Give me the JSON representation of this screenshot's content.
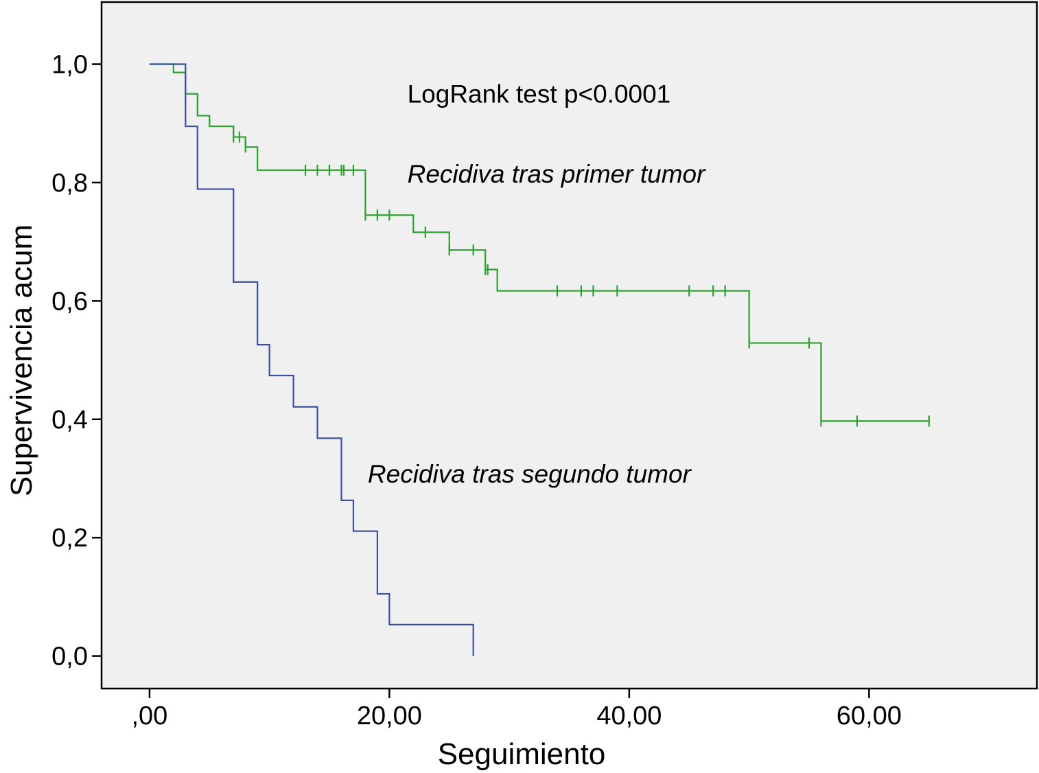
{
  "chart_data": {
    "type": "line",
    "subtype": "kaplan-meier step curve",
    "xlabel": "Seguimiento",
    "ylabel": "Supervivencia acum",
    "xlim": [
      -4,
      74
    ],
    "ylim": [
      -0.055,
      1.105
    ],
    "x_ticks": [
      0,
      20,
      40,
      60
    ],
    "x_tick_labels": [
      ",00",
      "20,00",
      "40,00",
      "60,00"
    ],
    "y_ticks": [
      0,
      0.2,
      0.4,
      0.6,
      0.8,
      1.0
    ],
    "y_tick_labels": [
      "0,0",
      "0,2",
      "0,4",
      "0,6",
      "0,8",
      "1,0"
    ],
    "grid": false,
    "legend": "none",
    "annotations": [
      {
        "text": "LogRank test p<0.0001",
        "x": 21.5,
        "y": 0.935,
        "italic": false
      },
      {
        "text": "Recidiva tras primer tumor",
        "x": 21.5,
        "y": 0.8,
        "italic": true
      },
      {
        "text": "Recidiva tras segundo tumor",
        "x": 18.2,
        "y": 0.293,
        "italic": true
      }
    ],
    "series": [
      {
        "color": "#2ca02c",
        "steps": [
          [
            0,
            1.0
          ],
          [
            2,
            0.986
          ],
          [
            3,
            0.95
          ],
          [
            4,
            0.913
          ],
          [
            5,
            0.895
          ],
          [
            7,
            0.877
          ],
          [
            8,
            0.86
          ],
          [
            9,
            0.821
          ],
          [
            18,
            0.745
          ],
          [
            22,
            0.716
          ],
          [
            25,
            0.686
          ],
          [
            28,
            0.653
          ],
          [
            29,
            0.617
          ],
          [
            50,
            0.529
          ],
          [
            56,
            0.397
          ],
          [
            65,
            0.397
          ]
        ],
        "censored": [
          [
            3,
            0.95
          ],
          [
            7,
            0.877
          ],
          [
            7.5,
            0.877
          ],
          [
            8,
            0.86
          ],
          [
            13,
            0.821
          ],
          [
            14,
            0.821
          ],
          [
            15,
            0.821
          ],
          [
            16,
            0.821
          ],
          [
            16.2,
            0.821
          ],
          [
            17,
            0.821
          ],
          [
            18,
            0.745
          ],
          [
            19,
            0.745
          ],
          [
            20,
            0.745
          ],
          [
            23,
            0.716
          ],
          [
            25,
            0.686
          ],
          [
            27,
            0.686
          ],
          [
            28,
            0.653
          ],
          [
            28.2,
            0.653
          ],
          [
            34,
            0.617
          ],
          [
            36,
            0.617
          ],
          [
            37,
            0.617
          ],
          [
            39,
            0.617
          ],
          [
            45,
            0.617
          ],
          [
            47,
            0.617
          ],
          [
            48,
            0.617
          ],
          [
            50,
            0.529
          ],
          [
            55,
            0.529
          ],
          [
            56,
            0.397
          ],
          [
            59,
            0.397
          ],
          [
            65,
            0.397
          ]
        ]
      },
      {
        "color": "#3b4fa0",
        "steps": [
          [
            0,
            1.0
          ],
          [
            3,
            0.895
          ],
          [
            4,
            0.789
          ],
          [
            7,
            0.632
          ],
          [
            9,
            0.526
          ],
          [
            10,
            0.474
          ],
          [
            12,
            0.421
          ],
          [
            14,
            0.368
          ],
          [
            16,
            0.263
          ],
          [
            17,
            0.211
          ],
          [
            19,
            0.105
          ],
          [
            20,
            0.053
          ],
          [
            27,
            0.0
          ]
        ],
        "censored": []
      }
    ]
  }
}
